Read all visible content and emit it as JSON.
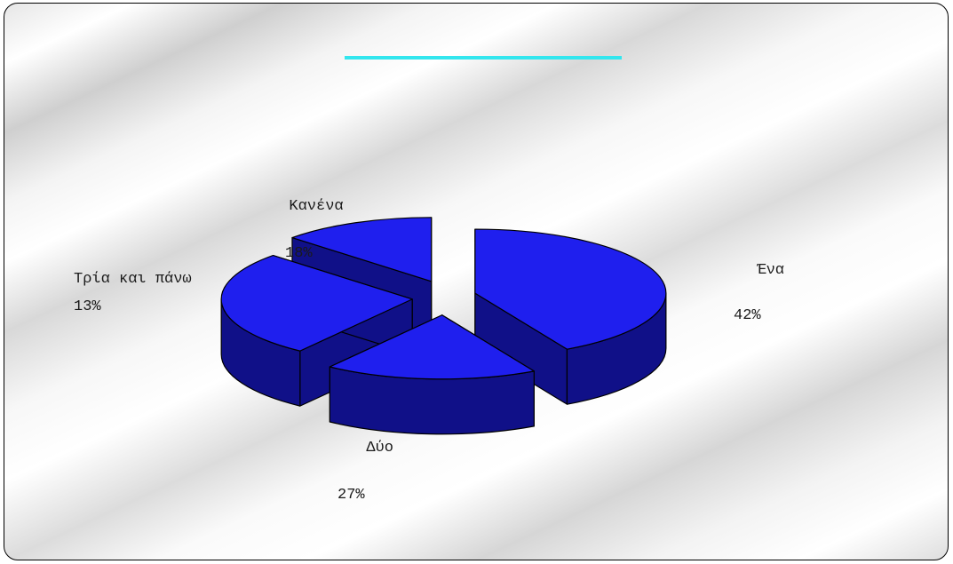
{
  "chart_data": {
    "type": "pie",
    "style": "3d-exploded",
    "title": "",
    "slices": [
      {
        "label": "Ένα",
        "value": 42,
        "value_label": "42%"
      },
      {
        "label": "Κανένα",
        "value": 18,
        "value_label": "18%"
      },
      {
        "label": "Δύο",
        "value": 27,
        "value_label": "27%"
      },
      {
        "label": "Τρία και πάνω",
        "value": 13,
        "value_label": "13%"
      }
    ],
    "colors": {
      "top": "#1f1fee",
      "side": "#101088",
      "edge": "#000000",
      "title_accent": "#33e6ee"
    }
  }
}
